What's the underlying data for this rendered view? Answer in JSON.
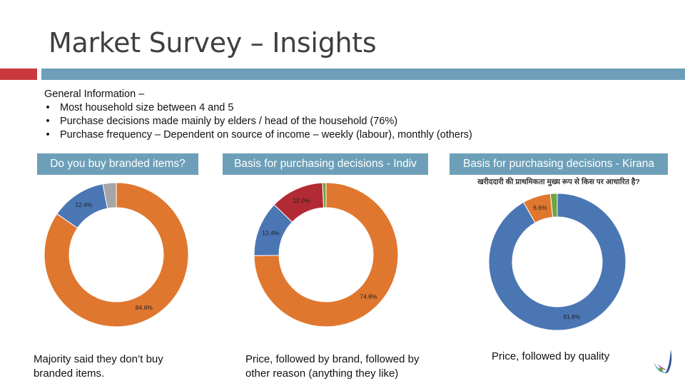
{
  "slide": {
    "title": "Market Survey – Insights",
    "general_info": {
      "heading": "General Information –",
      "bullets": [
        "Most household size between 4 and 5",
        "Purchase decisions made mainly by elders / head of the household (76%)",
        "Purchase frequency – Dependent on source of income – weekly (labour), monthly (others)"
      ]
    },
    "panels": [
      {
        "header": "Do you buy branded items?",
        "subtitle": "",
        "caption_lines": [
          "Majority said they don’t buy",
          "branded items."
        ]
      },
      {
        "header": "Basis for purchasing decisions - Indiv",
        "subtitle": "",
        "caption_lines": [
          "Price, followed by brand, followed by",
          "other reason (anything they like)"
        ]
      },
      {
        "header": "Basis for purchasing decisions - Kirana",
        "subtitle": "खरीददारी की प्राथमिकता मुख्य रूप से किस पर आधारित है?",
        "caption_lines": [
          "Price, followed by quality"
        ]
      }
    ]
  },
  "colors": {
    "accent_red": "#c9393e",
    "accent_blue": "#6d9fb8",
    "orange": "#e0772f",
    "blue": "#4a76b3",
    "red": "#b22a33",
    "green": "#6ba644",
    "gray": "#a6a6a6"
  },
  "chart_data": [
    {
      "type": "pie",
      "slices": [
        {
          "value": 84.6,
          "label": "84.6%",
          "color": "#e0772f"
        },
        {
          "value": 12.4,
          "label": "12.4%",
          "color": "#4a76b3"
        },
        {
          "value": 3.0,
          "label": "",
          "color": "#a6a6a6"
        }
      ]
    },
    {
      "type": "pie",
      "slices": [
        {
          "value": 74.8,
          "label": "74.8%",
          "color": "#e0772f"
        },
        {
          "value": 12.4,
          "label": "12.4%",
          "color": "#4a76b3"
        },
        {
          "value": 12.0,
          "label": "12.0%",
          "color": "#b22a33"
        },
        {
          "value": 0.8,
          "label": "",
          "color": "#6ba644"
        }
      ]
    },
    {
      "type": "pie",
      "slices": [
        {
          "value": 91.8,
          "label": "91.8%",
          "color": "#4a76b3"
        },
        {
          "value": 6.6,
          "label": "6.6%",
          "color": "#e0772f"
        },
        {
          "value": 1.6,
          "label": "",
          "color": "#6ba644"
        }
      ]
    }
  ]
}
